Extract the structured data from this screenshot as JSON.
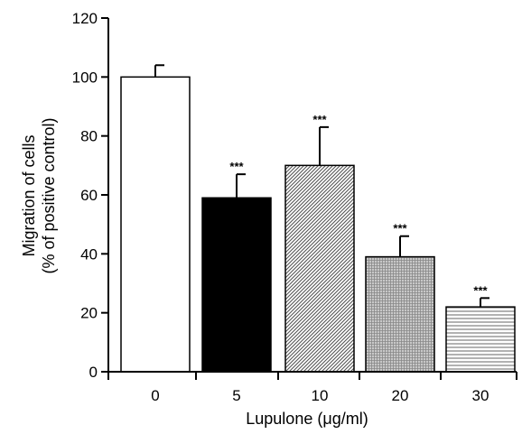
{
  "chart_data": {
    "type": "bar",
    "categories": [
      "0",
      "5",
      "10",
      "20",
      "30"
    ],
    "values": [
      100,
      59,
      70,
      39,
      22
    ],
    "error": [
      4,
      8,
      13,
      7,
      3
    ],
    "significance": [
      "",
      "***",
      "***",
      "***",
      "***"
    ],
    "fills": [
      "#ffffff",
      "#000000",
      "diag-hatch",
      "grid-hatch",
      "horiz-hatch"
    ],
    "xlabel": "Lupulone (μg/ml)",
    "ylabel_line1": "Migration of cells",
    "ylabel_line2": "(% of positive control)",
    "ylim": [
      0,
      120
    ],
    "yticks": [
      0,
      20,
      40,
      60,
      80,
      100,
      120
    ],
    "grid": false
  }
}
